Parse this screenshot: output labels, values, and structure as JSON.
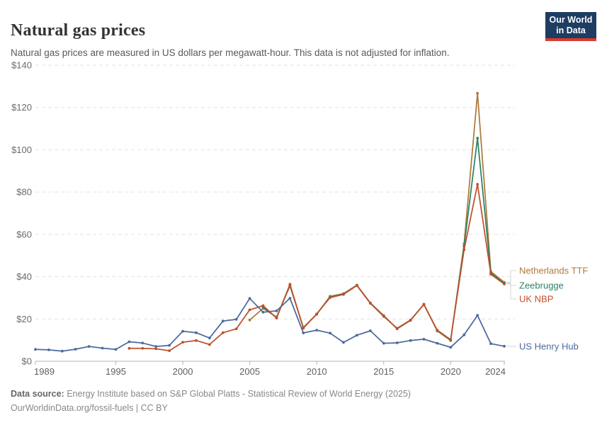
{
  "header": {
    "title": "Natural gas prices",
    "subtitle": "Natural gas prices are measured in US dollars per megawatt-hour. This data is not adjusted for inflation.",
    "logo": {
      "line1": "Our World",
      "line2": "in Data",
      "bg_color": "#1d3d63",
      "accent_color": "#dc3a2b"
    }
  },
  "footer": {
    "source_label": "Data source:",
    "source_text": " Energy Institute based on S&P Global Platts - Statistical Review of World Energy (2025)",
    "link_line": "OurWorldinData.org/fossil-fuels | CC BY"
  },
  "chart_data": {
    "type": "line",
    "title": "Natural gas prices",
    "xlabel": "",
    "ylabel": "US dollars per megawatt-hour",
    "unit_prefix": "$",
    "ylim": [
      0,
      140
    ],
    "yticks": [
      0,
      20,
      40,
      60,
      80,
      100,
      120,
      140
    ],
    "ytick_labels": [
      "$0",
      "$20",
      "$40",
      "$60",
      "$80",
      "$100",
      "$120",
      "$140"
    ],
    "xlim": [
      1989,
      2024
    ],
    "xticks": [
      1989,
      1995,
      2000,
      2005,
      2010,
      2015,
      2020,
      2024
    ],
    "grid": "horizontal-dashed",
    "legend_position": "right-of-line-ends",
    "marker": "dot",
    "series": [
      {
        "name": "Netherlands TTF",
        "color": "#b0793a",
        "points": [
          [
            2005,
            19.5
          ],
          [
            2006,
            25.0
          ],
          [
            2007,
            20.9
          ],
          [
            2008,
            35.6
          ],
          [
            2009,
            16.0
          ],
          [
            2010,
            22.2
          ],
          [
            2011,
            30.7
          ],
          [
            2012,
            32.0
          ],
          [
            2013,
            36.0
          ],
          [
            2014,
            27.6
          ],
          [
            2015,
            21.6
          ],
          [
            2016,
            15.3
          ],
          [
            2017,
            19.3
          ],
          [
            2018,
            27.0
          ],
          [
            2019,
            14.3
          ],
          [
            2020,
            9.8
          ],
          [
            2021,
            55.5
          ],
          [
            2022,
            126.7
          ],
          [
            2023,
            42.4
          ],
          [
            2024,
            37.3
          ]
        ]
      },
      {
        "name": "Zeebrugge",
        "color": "#2c8465",
        "points": [
          [
            2006,
            25.5
          ],
          [
            2007,
            20.7
          ],
          [
            2008,
            36.0
          ],
          [
            2009,
            15.8
          ],
          [
            2010,
            22.3
          ],
          [
            2011,
            30.4
          ],
          [
            2012,
            31.8
          ],
          [
            2013,
            35.9
          ],
          [
            2014,
            27.5
          ],
          [
            2015,
            21.4
          ],
          [
            2016,
            15.4
          ],
          [
            2017,
            19.4
          ],
          [
            2018,
            26.9
          ],
          [
            2019,
            14.5
          ],
          [
            2020,
            9.9
          ],
          [
            2021,
            54.5
          ],
          [
            2022,
            105.5
          ],
          [
            2023,
            41.8
          ],
          [
            2024,
            36.9
          ]
        ]
      },
      {
        "name": "UK NBP",
        "color": "#c1502b",
        "points": [
          [
            1996,
            6.1
          ],
          [
            1997,
            6.1
          ],
          [
            1998,
            5.9
          ],
          [
            1999,
            5.0
          ],
          [
            2000,
            9.0
          ],
          [
            2001,
            9.8
          ],
          [
            2002,
            7.9
          ],
          [
            2003,
            13.5
          ],
          [
            2004,
            15.3
          ],
          [
            2005,
            24.3
          ],
          [
            2006,
            26.3
          ],
          [
            2007,
            20.4
          ],
          [
            2008,
            36.4
          ],
          [
            2009,
            15.6
          ],
          [
            2010,
            22.4
          ],
          [
            2011,
            30.1
          ],
          [
            2012,
            31.6
          ],
          [
            2013,
            35.8
          ],
          [
            2014,
            27.4
          ],
          [
            2015,
            21.2
          ],
          [
            2016,
            15.6
          ],
          [
            2017,
            19.5
          ],
          [
            2018,
            26.8
          ],
          [
            2019,
            14.7
          ],
          [
            2020,
            10.2
          ],
          [
            2021,
            52.8
          ],
          [
            2022,
            83.7
          ],
          [
            2023,
            41.1
          ],
          [
            2024,
            36.5
          ]
        ]
      },
      {
        "name": "US Henry Hub",
        "color": "#4c6a9c",
        "points": [
          [
            1989,
            5.6
          ],
          [
            1990,
            5.4
          ],
          [
            1991,
            4.8
          ],
          [
            1992,
            5.7
          ],
          [
            1993,
            7.0
          ],
          [
            1994,
            6.2
          ],
          [
            1995,
            5.6
          ],
          [
            1996,
            9.2
          ],
          [
            1997,
            8.6
          ],
          [
            1998,
            7.0
          ],
          [
            1999,
            7.5
          ],
          [
            2000,
            14.2
          ],
          [
            2001,
            13.5
          ],
          [
            2002,
            11.0
          ],
          [
            2003,
            19.0
          ],
          [
            2004,
            19.8
          ],
          [
            2005,
            29.7
          ],
          [
            2006,
            23.2
          ],
          [
            2007,
            23.8
          ],
          [
            2008,
            29.8
          ],
          [
            2009,
            13.4
          ],
          [
            2010,
            14.7
          ],
          [
            2011,
            13.3
          ],
          [
            2012,
            8.9
          ],
          [
            2013,
            12.3
          ],
          [
            2014,
            14.4
          ],
          [
            2015,
            8.5
          ],
          [
            2016,
            8.7
          ],
          [
            2017,
            9.8
          ],
          [
            2018,
            10.4
          ],
          [
            2019,
            8.5
          ],
          [
            2020,
            6.6
          ],
          [
            2021,
            12.5
          ],
          [
            2022,
            21.7
          ],
          [
            2023,
            8.3
          ],
          [
            2024,
            7.1
          ]
        ]
      }
    ]
  }
}
